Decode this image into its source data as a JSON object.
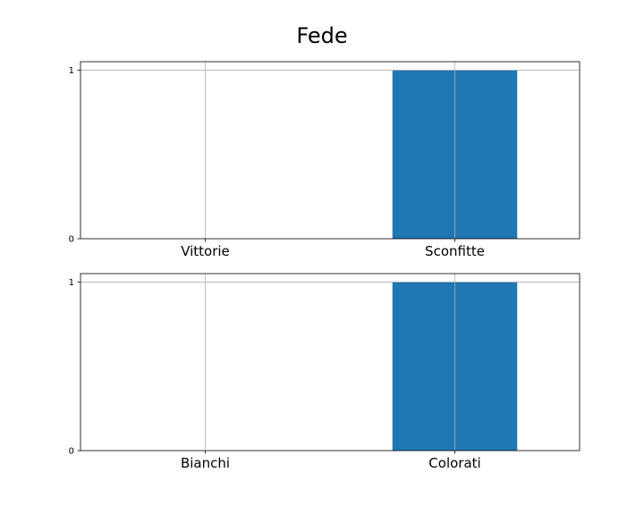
{
  "figure": {
    "title": "Fede"
  },
  "chart_data": [
    {
      "type": "bar",
      "categories": [
        "Vittorie",
        "Sconfitte"
      ],
      "values": [
        0,
        1
      ],
      "yticks": [
        "0",
        "1"
      ],
      "ylim": [
        0,
        1.05
      ],
      "grid": true,
      "bar_color": "#1f77b4"
    },
    {
      "type": "bar",
      "categories": [
        "Bianchi",
        "Colorati"
      ],
      "values": [
        0,
        1
      ],
      "yticks": [
        "0",
        "1"
      ],
      "ylim": [
        0,
        1.05
      ],
      "grid": true,
      "bar_color": "#1f77b4"
    }
  ]
}
